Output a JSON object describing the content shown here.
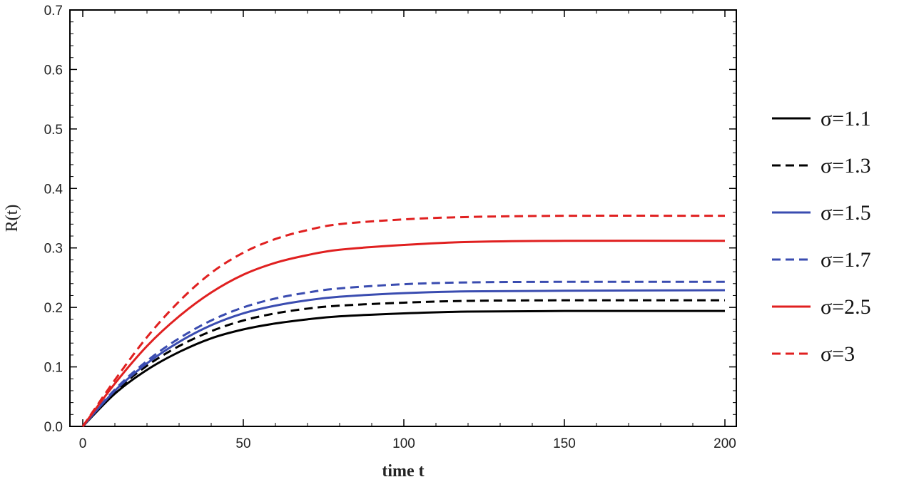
{
  "chart_data": {
    "type": "line",
    "xlabel": "time t",
    "ylabel": "R(t)",
    "xlim": [
      0,
      200
    ],
    "ylim": [
      0,
      0.7
    ],
    "xticks": [
      0,
      50,
      100,
      150,
      200
    ],
    "yticks": [
      0.0,
      0.1,
      0.2,
      0.3,
      0.4,
      0.5,
      0.6,
      0.7
    ],
    "ytick_labels": [
      "0.0",
      "0.1",
      "0.2",
      "0.3",
      "0.4",
      "0.5",
      "0.6",
      "0.7"
    ],
    "grid": false,
    "legend_position": "right",
    "x": [
      0,
      10,
      20,
      30,
      40,
      50,
      60,
      70,
      80,
      100,
      120,
      150,
      200
    ],
    "series": [
      {
        "name": "σ=1.1",
        "color": "#000000",
        "dash": "solid",
        "values": [
          0,
          0.055,
          0.095,
          0.125,
          0.148,
          0.163,
          0.173,
          0.18,
          0.185,
          0.19,
          0.193,
          0.194,
          0.194
        ]
      },
      {
        "name": "σ=1.3",
        "color": "#000000",
        "dash": "dashed",
        "values": [
          0,
          0.058,
          0.102,
          0.135,
          0.16,
          0.178,
          0.19,
          0.198,
          0.203,
          0.208,
          0.211,
          0.212,
          0.212
        ]
      },
      {
        "name": "σ=1.5",
        "color": "#3a4cb0",
        "dash": "solid",
        "values": [
          0,
          0.06,
          0.106,
          0.142,
          0.17,
          0.19,
          0.203,
          0.212,
          0.218,
          0.224,
          0.227,
          0.228,
          0.229
        ]
      },
      {
        "name": "σ=1.7",
        "color": "#3a4cb0",
        "dash": "dashed",
        "values": [
          0,
          0.062,
          0.11,
          0.148,
          0.178,
          0.2,
          0.215,
          0.225,
          0.232,
          0.239,
          0.242,
          0.243,
          0.243
        ]
      },
      {
        "name": "σ=2.5",
        "color": "#e02020",
        "dash": "solid",
        "values": [
          0,
          0.072,
          0.135,
          0.185,
          0.225,
          0.255,
          0.275,
          0.288,
          0.297,
          0.305,
          0.31,
          0.312,
          0.312
        ]
      },
      {
        "name": "σ=3",
        "color": "#e02020",
        "dash": "dashed",
        "values": [
          0,
          0.078,
          0.15,
          0.21,
          0.258,
          0.292,
          0.315,
          0.33,
          0.34,
          0.348,
          0.352,
          0.354,
          0.354
        ]
      }
    ]
  }
}
